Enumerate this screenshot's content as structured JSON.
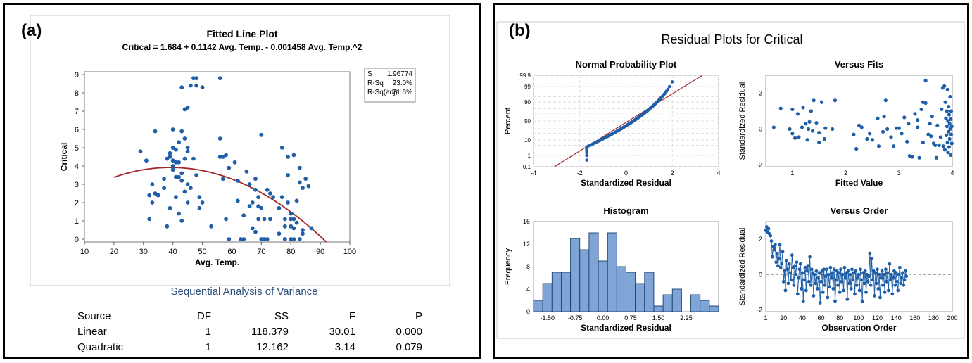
{
  "panel_a": {
    "tag": "(a)",
    "title": "Fitted Line Plot",
    "equation": "Critical = 1.684 + 0.1142 Avg. Temp. - 0.001458 Avg. Temp.^2",
    "stats": [
      {
        "label": "S",
        "value": "1.96774"
      },
      {
        "label": "R-Sq",
        "value": "23.0%"
      },
      {
        "label": "R-Sq(adj)",
        "value": "21.6%"
      }
    ],
    "anova_title": "Sequential Analysis of Variance",
    "anova_headers": [
      "Source",
      "DF",
      "SS",
      "F",
      "P"
    ],
    "anova_rows": [
      [
        "Linear",
        "1",
        "118.379",
        "30.01",
        "0.000"
      ],
      [
        "Quadratic",
        "1",
        "12.162",
        "3.14",
        "0.079"
      ]
    ]
  },
  "panel_b": {
    "tag": "(b)",
    "title": "Residual Plots for Critical"
  },
  "chart_data": [
    {
      "id": "fitted-line",
      "type": "scatter",
      "title": "Fitted Line Plot",
      "xlabel": "Avg. Temp.",
      "ylabel": "Critical",
      "xlim": [
        10,
        100
      ],
      "ylim": [
        0,
        9
      ],
      "xticks": [
        10,
        20,
        30,
        40,
        50,
        60,
        70,
        80,
        90,
        100
      ],
      "yticks": [
        0,
        1,
        2,
        3,
        4,
        5,
        6,
        7,
        8,
        9
      ],
      "colors": {
        "points": "#1f5fa8",
        "fit": "#a3262a"
      },
      "fit": {
        "intercept": 1.684,
        "b1": 0.1142,
        "b2": -0.001458,
        "x_range": [
          20,
          92
        ]
      },
      "points": [
        [
          29,
          4.8
        ],
        [
          31,
          4.3
        ],
        [
          32,
          2.4
        ],
        [
          32,
          1.1
        ],
        [
          33,
          2.0
        ],
        [
          33,
          3.0
        ],
        [
          34,
          5.9
        ],
        [
          34,
          2.5
        ],
        [
          35,
          2.4
        ],
        [
          37,
          3.3
        ],
        [
          37,
          2.8
        ],
        [
          38,
          0.7
        ],
        [
          38,
          4.4
        ],
        [
          39,
          4.7
        ],
        [
          39,
          1.7
        ],
        [
          39,
          4.5
        ],
        [
          40,
          4.0
        ],
        [
          40,
          3.8
        ],
        [
          40,
          4.3
        ],
        [
          40,
          6.0
        ],
        [
          40,
          5.0
        ],
        [
          41,
          2.3
        ],
        [
          41,
          4.9
        ],
        [
          41,
          4.2
        ],
        [
          41,
          3.4
        ],
        [
          42,
          5.3
        ],
        [
          42,
          3.4
        ],
        [
          42,
          1.4
        ],
        [
          42,
          4.2
        ],
        [
          43,
          3.6
        ],
        [
          43,
          3.2
        ],
        [
          43,
          8.3
        ],
        [
          43,
          5.9
        ],
        [
          43,
          1.0
        ],
        [
          44,
          7.1
        ],
        [
          44,
          4.4
        ],
        [
          44,
          5.5
        ],
        [
          44,
          2.6
        ],
        [
          45,
          7.2
        ],
        [
          45,
          4.8
        ],
        [
          45,
          5.0
        ],
        [
          45,
          3.0
        ],
        [
          45,
          2.0
        ],
        [
          46,
          2.8
        ],
        [
          46,
          8.4
        ],
        [
          47,
          8.8
        ],
        [
          47,
          4.4
        ],
        [
          48,
          8.8
        ],
        [
          48,
          8.4
        ],
        [
          48,
          3.5
        ],
        [
          49,
          1.7
        ],
        [
          49,
          2.3
        ],
        [
          50,
          8.3
        ],
        [
          50,
          2.0
        ],
        [
          53,
          0.7
        ],
        [
          56,
          8.8
        ],
        [
          56,
          5.5
        ],
        [
          56,
          4.5
        ],
        [
          57,
          3.3
        ],
        [
          57,
          4.5
        ],
        [
          58,
          1.1
        ],
        [
          58,
          4.6
        ],
        [
          59,
          0.0
        ],
        [
          59,
          3.9
        ],
        [
          61,
          4.2
        ],
        [
          62,
          2.1
        ],
        [
          62,
          3.2
        ],
        [
          63,
          0.0
        ],
        [
          64,
          0.0
        ],
        [
          64,
          1.3
        ],
        [
          65,
          3.7
        ],
        [
          66,
          1.8
        ],
        [
          66,
          3.0
        ],
        [
          67,
          0.6
        ],
        [
          67,
          2.0
        ],
        [
          68,
          0.4
        ],
        [
          68,
          2.7
        ],
        [
          68,
          3.3
        ],
        [
          69,
          2.3
        ],
        [
          69,
          1.8
        ],
        [
          69,
          1.1
        ],
        [
          70,
          5.7
        ],
        [
          70,
          0.0
        ],
        [
          70,
          1.7
        ],
        [
          71,
          0.0
        ],
        [
          71,
          1.1
        ],
        [
          72,
          0.0
        ],
        [
          72,
          2.7
        ],
        [
          73,
          2.5
        ],
        [
          73,
          1.1
        ],
        [
          74,
          2.3
        ],
        [
          76,
          1.7
        ],
        [
          76,
          0.3
        ],
        [
          77,
          5.0
        ],
        [
          77,
          2.3
        ],
        [
          78,
          0.0
        ],
        [
          78,
          0.7
        ],
        [
          78,
          1.1
        ],
        [
          79,
          2.0
        ],
        [
          79,
          3.5
        ],
        [
          79,
          4.5
        ],
        [
          80,
          0.0
        ],
        [
          80,
          1.1
        ],
        [
          80,
          1.4
        ],
        [
          80,
          0.7
        ],
        [
          81,
          4.6
        ],
        [
          81,
          0.0
        ],
        [
          81,
          1.1
        ],
        [
          81,
          0.6
        ],
        [
          82,
          2.1
        ],
        [
          82,
          0.9
        ],
        [
          83,
          3.1
        ],
        [
          83,
          3.9
        ],
        [
          83,
          0.0
        ],
        [
          84,
          2.8
        ],
        [
          84,
          0.3
        ],
        [
          84,
          0.5
        ],
        [
          85,
          3.3
        ],
        [
          86,
          2.9
        ],
        [
          87,
          0.6
        ]
      ]
    },
    {
      "id": "normal-probability",
      "type": "scatter",
      "title": "Normal Probability Plot",
      "xlabel": "Standardized Residual",
      "ylabel": "Percent",
      "xlim": [
        -4,
        4
      ],
      "xticks": [
        -4,
        -2,
        0,
        2,
        4
      ],
      "yticks": [
        0.1,
        1,
        10,
        50,
        90,
        99,
        99.9
      ],
      "ytick_labels": [
        "0.1",
        "1",
        "10",
        "50",
        "90",
        "99",
        "99.9"
      ],
      "yticks_grid": [
        0.1,
        1,
        5,
        10,
        20,
        30,
        40,
        50,
        60,
        70,
        80,
        90,
        95,
        99,
        99.9
      ],
      "ylim": [
        0.1,
        99.9
      ],
      "scale": "normal-probability",
      "reference_line": {
        "mean": 0.2,
        "sd": 1.0
      },
      "residuals_range": [
        -1.7,
        2.75
      ],
      "n": 170
    },
    {
      "id": "versus-fits",
      "type": "scatter",
      "title": "Versus Fits",
      "xlabel": "Fitted Value",
      "ylabel": "Standardized Residual",
      "xlim": [
        0.5,
        4.0
      ],
      "ylim": [
        -2.1,
        3.0
      ],
      "xticks": [
        1,
        2,
        3,
        4
      ],
      "yticks": [
        -2,
        0,
        2
      ],
      "reference_y": 0,
      "points": [
        [
          0.65,
          0.1
        ],
        [
          0.78,
          1.15
        ],
        [
          0.95,
          0.0
        ],
        [
          1.0,
          1.1
        ],
        [
          1.0,
          -0.25
        ],
        [
          1.05,
          -0.5
        ],
        [
          1.1,
          0.85
        ],
        [
          1.12,
          -0.45
        ],
        [
          1.18,
          0.1
        ],
        [
          1.2,
          1.2
        ],
        [
          1.25,
          0.3
        ],
        [
          1.28,
          -0.6
        ],
        [
          1.3,
          0.0
        ],
        [
          1.32,
          0.4
        ],
        [
          1.35,
          1.0
        ],
        [
          1.38,
          -0.1
        ],
        [
          1.4,
          1.6
        ],
        [
          1.45,
          0.35
        ],
        [
          1.5,
          -0.2
        ],
        [
          1.5,
          -0.75
        ],
        [
          1.55,
          1.5
        ],
        [
          1.6,
          -0.55
        ],
        [
          1.62,
          0.05
        ],
        [
          1.8,
          1.6
        ],
        [
          1.75,
          0.0
        ],
        [
          2.15,
          -0.3
        ],
        [
          2.2,
          -1.1
        ],
        [
          2.25,
          0.2
        ],
        [
          2.3,
          0.1
        ],
        [
          2.4,
          -0.55
        ],
        [
          2.45,
          -0.25
        ],
        [
          2.5,
          -0.6
        ],
        [
          2.6,
          0.6
        ],
        [
          2.62,
          -0.95
        ],
        [
          2.7,
          -0.15
        ],
        [
          2.72,
          0.7
        ],
        [
          2.75,
          1.6
        ],
        [
          2.78,
          0.0
        ],
        [
          2.85,
          -0.45
        ],
        [
          2.9,
          -0.95
        ],
        [
          2.95,
          0.05
        ],
        [
          3.0,
          0.05
        ],
        [
          3.05,
          -0.25
        ],
        [
          3.1,
          0.65
        ],
        [
          3.15,
          -0.7
        ],
        [
          3.18,
          0.3
        ],
        [
          3.2,
          -1.5
        ],
        [
          3.25,
          -1.55
        ],
        [
          3.3,
          0.85
        ],
        [
          3.35,
          0.5
        ],
        [
          3.38,
          -1.6
        ],
        [
          3.42,
          1.1
        ],
        [
          3.45,
          1.5
        ],
        [
          3.5,
          1.45
        ],
        [
          3.55,
          -0.3
        ],
        [
          3.58,
          0.3
        ],
        [
          3.6,
          -0.4
        ],
        [
          3.62,
          0.7
        ],
        [
          3.65,
          -0.8
        ],
        [
          3.68,
          -0.9
        ],
        [
          3.7,
          -1.6
        ],
        [
          3.72,
          0.2
        ],
        [
          3.75,
          -0.9
        ],
        [
          3.78,
          -0.45
        ],
        [
          3.8,
          1.1
        ],
        [
          3.82,
          2.3
        ],
        [
          3.83,
          -0.95
        ],
        [
          3.85,
          2.4
        ],
        [
          3.86,
          -1.15
        ],
        [
          3.87,
          1.5
        ],
        [
          3.88,
          0.6
        ],
        [
          3.89,
          -0.35
        ],
        [
          3.9,
          1.0
        ],
        [
          3.9,
          0.15
        ],
        [
          3.91,
          -0.75
        ],
        [
          3.91,
          2.2
        ],
        [
          3.92,
          0.45
        ],
        [
          3.92,
          -1.3
        ],
        [
          3.93,
          1.25
        ],
        [
          3.93,
          -0.15
        ],
        [
          3.94,
          0.8
        ],
        [
          3.94,
          -1.0
        ],
        [
          3.95,
          0.3
        ],
        [
          3.95,
          -0.55
        ],
        [
          3.96,
          1.8
        ],
        [
          3.96,
          0.0
        ],
        [
          3.97,
          -1.45
        ],
        [
          3.97,
          0.55
        ],
        [
          3.98,
          1.0
        ],
        [
          3.98,
          -0.3
        ],
        [
          3.99,
          -0.8
        ],
        [
          3.99,
          0.15
        ],
        [
          3.5,
          2.7
        ],
        [
          3.45,
          -0.75
        ],
        [
          3.35,
          0.1
        ]
      ]
    },
    {
      "id": "histogram",
      "type": "bar",
      "title": "Histogram",
      "xlabel": "Standardized Residual",
      "ylabel": "Frequency",
      "xticks": [
        -1.5,
        -0.75,
        0.0,
        0.75,
        1.5,
        2.25
      ],
      "xtick_labels": [
        "-1.50",
        "-0.75",
        "0.00",
        "0.75",
        "1.50",
        "2.25"
      ],
      "yticks": [
        0,
        4,
        8,
        12,
        16
      ],
      "ylim": [
        0,
        16
      ],
      "bin_width": 0.25,
      "bins_start": -1.875,
      "values": [
        2,
        5,
        7,
        7,
        13,
        11,
        14,
        9,
        14,
        8,
        7,
        5,
        7,
        1,
        3,
        4,
        0,
        3,
        2,
        1
      ]
    },
    {
      "id": "versus-order",
      "type": "line",
      "title": "Versus Order",
      "xlabel": "Observation Order",
      "ylabel": "Standardized Residual",
      "xlim": [
        1,
        200
      ],
      "ylim": [
        -2.1,
        3.0
      ],
      "xticks": [
        1,
        20,
        40,
        60,
        80,
        100,
        120,
        140,
        160,
        180,
        200
      ],
      "yticks": [
        -2,
        0,
        2
      ],
      "reference_y": 0,
      "values": [
        2.5,
        2.7,
        2.4,
        2.6,
        2.3,
        2.2,
        1.9,
        1.0,
        1.6,
        1.4,
        1.7,
        0.7,
        1.2,
        0.5,
        0.9,
        1.7,
        0.4,
        0.6,
        1.3,
        -0.4,
        0.2,
        -0.9,
        0.8,
        0.3,
        -0.5,
        0.6,
        0.1,
        -0.3,
        1.1,
        0.4,
        -0.6,
        0.5,
        0.0,
        0.7,
        -1.1,
        -0.2,
        0.3,
        0.6,
        -0.8,
        0.1,
        -1.5,
        -0.3,
        0.4,
        -0.9,
        0.2,
        0.5,
        -0.4,
        1.0,
        -0.6,
        0.3,
        0.1,
        -1.2,
        0.0,
        -0.5,
        0.2,
        -0.8,
        -0.2,
        0.1,
        -1.6,
        -0.4,
        0.2,
        -1.0,
        0.3,
        -0.6,
        -0.1,
        0.3,
        -1.3,
        0.0,
        -0.7,
        0.4,
        -0.2,
        0.1,
        -0.8,
        0.3,
        -1.5,
        -0.3,
        0.2,
        -0.6,
        0.1,
        -1.0,
        0.3,
        -0.4,
        0.0,
        -0.9,
        0.4,
        -0.2,
        0.1,
        -1.4,
        0.2,
        -0.5,
        0.0,
        -0.8,
        0.3,
        -0.3,
        0.1,
        -1.1,
        0.2,
        -0.6,
        -0.2,
        0.0,
        -0.9,
        0.3,
        -0.3,
        -1.5,
        0.1,
        -0.5,
        0.2,
        -1.0,
        0.0,
        -0.4,
        -0.1,
        1.2,
        -0.6,
        0.9,
        -0.3,
        0.2,
        -1.2,
        0.1,
        -0.5,
        0.3,
        -0.8,
        0.0,
        -1.3,
        -0.2,
        0.2,
        -0.6,
        0.0,
        -1.0,
        0.3,
        -0.4,
        0.1,
        -0.9,
        0.6,
        -0.3,
        0.0,
        -1.1,
        -0.2,
        0.2,
        -0.6,
        0.1,
        -0.4,
        -0.9,
        0.0,
        0.4,
        -0.5,
        -0.2,
        0.1,
        -0.6,
        -0.3,
        0.2,
        -0.1
      ]
    }
  ]
}
